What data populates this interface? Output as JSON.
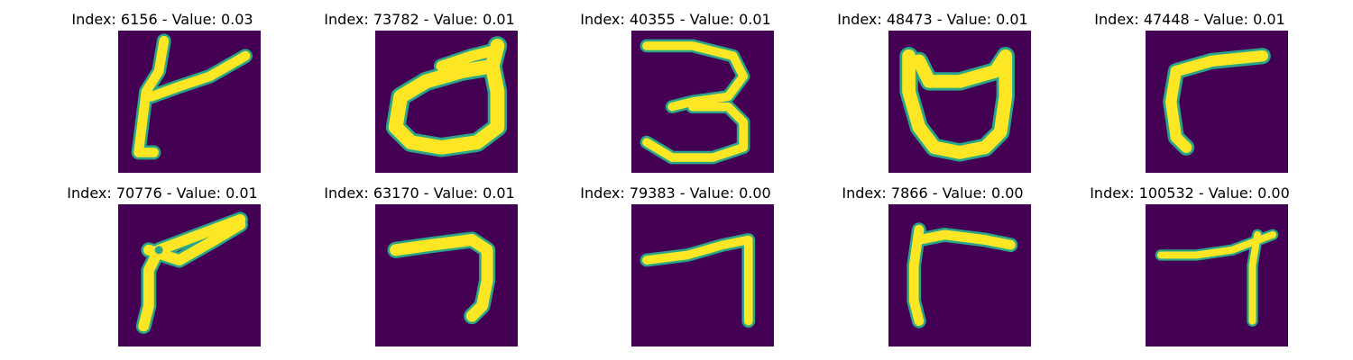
{
  "figure": {
    "colors": {
      "background": "#440154",
      "stroke": "#fde725",
      "stroke_edge": "#2ba58a"
    },
    "panels": [
      {
        "title": "Index: 6156 - Value: 0.03",
        "index": 6156,
        "value": 0.03
      },
      {
        "title": "Index: 73782 - Value: 0.01",
        "index": 73782,
        "value": 0.01
      },
      {
        "title": "Index: 40355 - Value: 0.01",
        "index": 40355,
        "value": 0.01
      },
      {
        "title": "Index: 48473 - Value: 0.01",
        "index": 48473,
        "value": 0.01
      },
      {
        "title": "Index: 47448 - Value: 0.01",
        "index": 47448,
        "value": 0.01
      },
      {
        "title": "Index: 70776 - Value: 0.01",
        "index": 70776,
        "value": 0.01
      },
      {
        "title": "Index: 63170 - Value: 0.01",
        "index": 63170,
        "value": 0.01
      },
      {
        "title": "Index: 79383 - Value: 0.00",
        "index": 79383,
        "value": 0.0
      },
      {
        "title": "Index: 7866 - Value: 0.00",
        "index": 7866,
        "value": 0.0
      },
      {
        "title": "Index: 100532 - Value: 0.00",
        "index": 100532,
        "value": 0.0
      }
    ]
  }
}
